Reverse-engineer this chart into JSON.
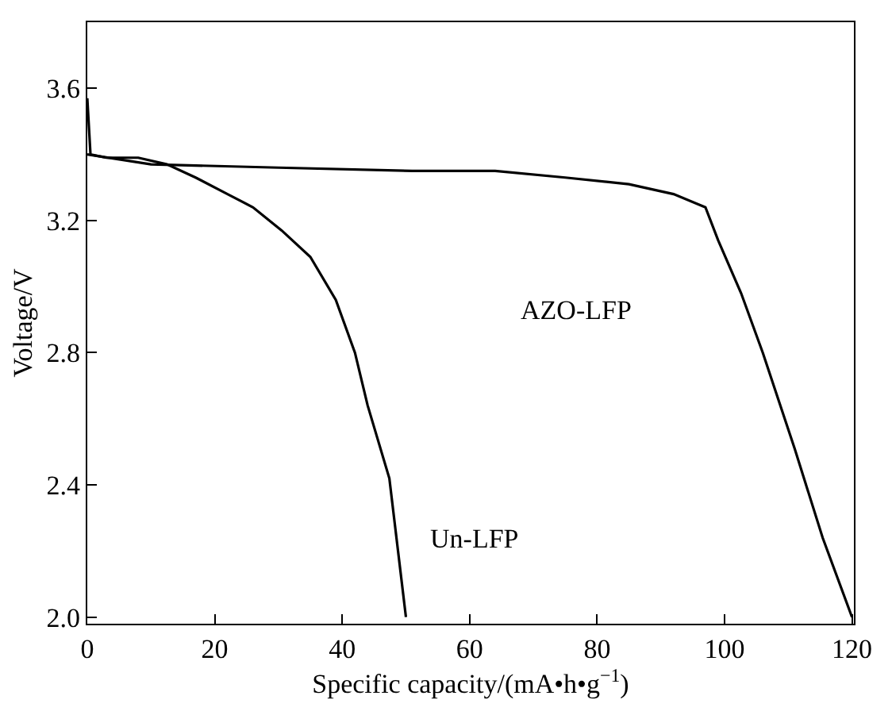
{
  "chart_data": {
    "type": "line",
    "xlabel": "Specific capacity/(mA•h•g$^{−1}$)",
    "ylabel": "Voltage/V",
    "xlim": [
      0,
      120.3
    ],
    "ylim": [
      1.98,
      3.8
    ],
    "xticks": [
      0,
      20,
      40,
      60,
      80,
      100,
      120
    ],
    "yticks": [
      {
        "value": 2,
        "label": "2.0"
      },
      2.4,
      2.8,
      3.2,
      3.6
    ],
    "marker": "none",
    "line_style": "solid",
    "series": [
      {
        "color": "#000000",
        "x": [
          0,
          0.5,
          3,
          8,
          12.5,
          17,
          22,
          26,
          30.5,
          35,
          39,
          42,
          44,
          47.4,
          50
        ],
        "values": [
          3.57,
          3.4,
          3.39,
          3.39,
          3.37,
          3.33,
          3.28,
          3.24,
          3.17,
          3.09,
          2.96,
          2.8,
          2.64,
          2.42,
          2.0
        ]
      },
      {
        "color": "#000000",
        "x": [
          0,
          10,
          30,
          51,
          64,
          75,
          85,
          92,
          97,
          99,
          102.6,
          106,
          111,
          115.4,
          120
        ],
        "values": [
          3.4,
          3.37,
          3.36,
          3.35,
          3.35,
          3.33,
          3.31,
          3.28,
          3.24,
          3.14,
          2.98,
          2.8,
          2.51,
          2.24,
          2.0
        ]
      }
    ],
    "annotations": [
      "Un-LFP",
      "AZO-LFP"
    ]
  }
}
